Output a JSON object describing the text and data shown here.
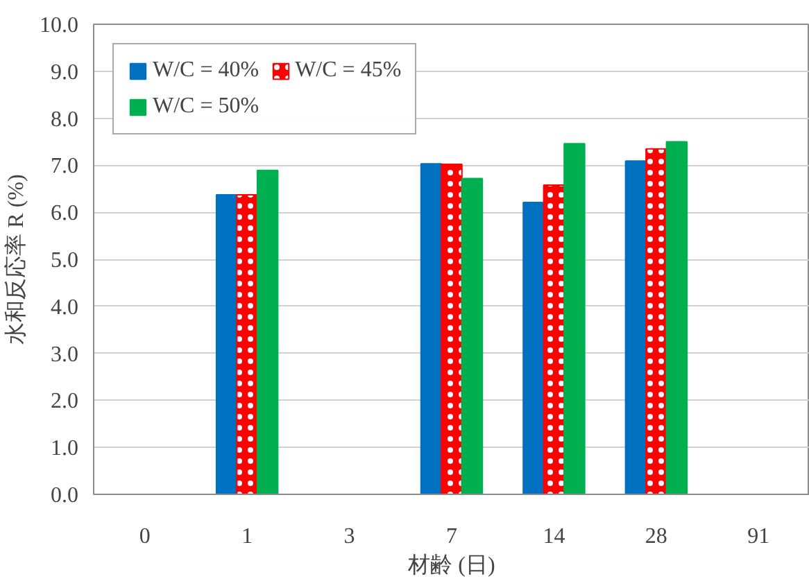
{
  "chart_data": {
    "type": "bar",
    "xlabel": "材齢 (日)",
    "ylabel": "水和反応率 R (%)",
    "categories": [
      "0",
      "1",
      "3",
      "7",
      "14",
      "28",
      "91"
    ],
    "series": [
      {
        "name": "W/C = 40%",
        "color": "#0070c0",
        "values": [
          null,
          6.37,
          null,
          7.03,
          6.21,
          7.09,
          null
        ]
      },
      {
        "name": "W/C = 45%",
        "color": "#ff0000",
        "values": [
          null,
          6.37,
          null,
          7.02,
          6.58,
          7.35,
          null
        ]
      },
      {
        "name": "W/C = 50%",
        "color": "#00b050",
        "values": [
          null,
          6.89,
          null,
          6.72,
          7.46,
          7.5,
          null
        ]
      }
    ],
    "ylim": [
      0,
      10
    ],
    "yticks": [
      {
        "value": 0,
        "label": "0.0"
      },
      {
        "value": 1,
        "label": "1.0"
      },
      {
        "value": 2,
        "label": "2.0"
      },
      {
        "value": 3,
        "label": "3.0"
      },
      {
        "value": 4,
        "label": "4.0"
      },
      {
        "value": 5,
        "label": "5.0"
      },
      {
        "value": 6,
        "label": "6.0"
      },
      {
        "value": 7,
        "label": "7.0"
      },
      {
        "value": 8,
        "label": "8.0"
      },
      {
        "value": 9,
        "label": "9.0"
      },
      {
        "value": 10,
        "label": "10.0"
      }
    ],
    "grid": "y",
    "legend": "top left"
  }
}
